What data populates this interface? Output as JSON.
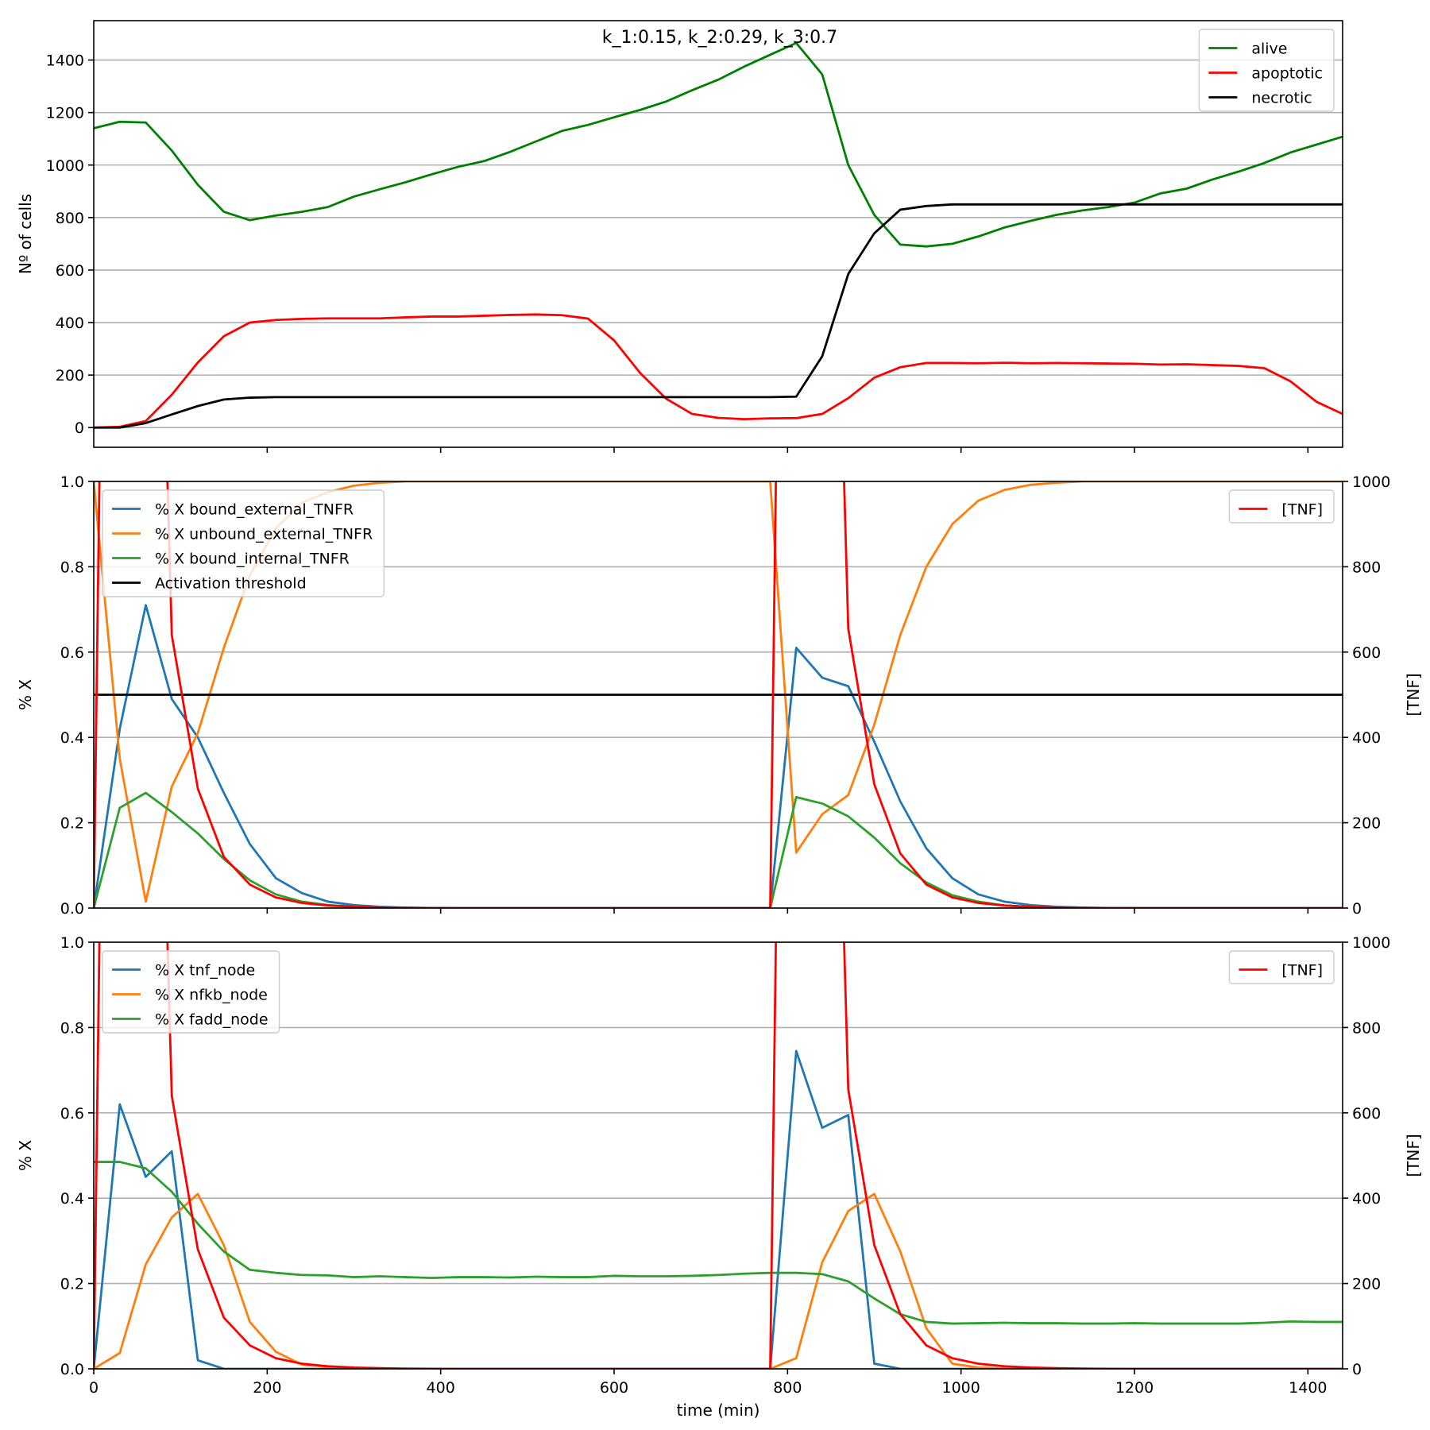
{
  "chart_data": [
    {
      "type": "line",
      "title": "k_1:0.15, k_2:0.29, k_3:0.7",
      "xlabel": "",
      "ylabel": "Nº of cells",
      "xlim": [
        0,
        1440
      ],
      "ylim": [
        -75,
        1550
      ],
      "xticks": [
        200,
        400,
        600,
        800,
        1000,
        1200,
        1400
      ],
      "yticks": [
        0,
        200,
        400,
        600,
        800,
        1000,
        1200,
        1400
      ],
      "show_x_ticklabels": false,
      "grid": "y",
      "legend": "top-right",
      "x": [
        0,
        30,
        60,
        90,
        120,
        150,
        180,
        210,
        240,
        270,
        300,
        330,
        360,
        390,
        420,
        450,
        480,
        510,
        540,
        570,
        600,
        630,
        660,
        690,
        720,
        750,
        780,
        810,
        840,
        870,
        900,
        930,
        960,
        990,
        1020,
        1050,
        1080,
        1110,
        1140,
        1170,
        1200,
        1230,
        1260,
        1290,
        1320,
        1350,
        1380,
        1410,
        1440
      ],
      "series": [
        {
          "name": "alive",
          "color": "#008000",
          "values": [
            1140,
            1165,
            1162,
            1055,
            925,
            822,
            790,
            808,
            822,
            840,
            880,
            908,
            935,
            965,
            993,
            1015,
            1050,
            1090,
            1130,
            1153,
            1182,
            1210,
            1242,
            1285,
            1325,
            1375,
            1420,
            1465,
            1345,
            1000,
            810,
            697,
            690,
            700,
            728,
            762,
            787,
            810,
            827,
            840,
            857,
            892,
            910,
            945,
            975,
            1008,
            1048,
            1078,
            1108
          ]
        },
        {
          "name": "apoptotic",
          "color": "#ff0000",
          "values": [
            0,
            3,
            25,
            125,
            248,
            348,
            400,
            410,
            414,
            416,
            416,
            416,
            420,
            423,
            423,
            426,
            429,
            431,
            428,
            415,
            332,
            208,
            110,
            52,
            37,
            32,
            35,
            36,
            52,
            112,
            190,
            230,
            246,
            246,
            245,
            247,
            245,
            246,
            245,
            244,
            243,
            240,
            241,
            238,
            235,
            226,
            176,
            98,
            52
          ]
        },
        {
          "name": "necrotic",
          "color": "#000000",
          "values": [
            0,
            0,
            17,
            50,
            82,
            107,
            114,
            116,
            116,
            116,
            116,
            116,
            116,
            116,
            116,
            116,
            116,
            116,
            116,
            116,
            116,
            116,
            116,
            116,
            116,
            116,
            116,
            118,
            272,
            585,
            740,
            830,
            844,
            850,
            850,
            850,
            850,
            850,
            850,
            850,
            850,
            850,
            850,
            850,
            850,
            850,
            850,
            850,
            850
          ]
        }
      ]
    },
    {
      "type": "line",
      "title": "",
      "xlabel": "",
      "ylabel": "% X",
      "y2label": "[TNF]",
      "xlim": [
        0,
        1440
      ],
      "ylim": [
        0,
        1.0
      ],
      "y2lim": [
        0,
        1000
      ],
      "xticks": [
        200,
        400,
        600,
        800,
        1000,
        1200,
        1400
      ],
      "yticks": [
        0.0,
        0.2,
        0.4,
        0.6,
        0.8,
        1.0
      ],
      "y2ticks": [
        0,
        200,
        400,
        600,
        800,
        1000
      ],
      "show_x_ticklabels": false,
      "grid": "y",
      "legend": "top-left",
      "legend2": "top-right",
      "x": [
        0,
        30,
        60,
        90,
        120,
        150,
        180,
        210,
        240,
        270,
        300,
        330,
        360,
        390,
        420,
        450,
        480,
        510,
        540,
        570,
        600,
        630,
        660,
        690,
        720,
        750,
        780,
        810,
        840,
        870,
        900,
        930,
        960,
        990,
        1020,
        1050,
        1080,
        1110,
        1140,
        1170,
        1200,
        1230,
        1260,
        1290,
        1320,
        1350,
        1380,
        1410,
        1440
      ],
      "series": [
        {
          "name": "% X bound_external_TNFR",
          "color": "#1f77b4",
          "values": [
            0.0,
            0.42,
            0.71,
            0.49,
            0.4,
            0.27,
            0.15,
            0.07,
            0.035,
            0.015,
            0.007,
            0.003,
            0.001,
            0,
            0,
            0,
            0,
            0,
            0,
            0,
            0,
            0,
            0,
            0,
            0,
            0,
            0,
            0.61,
            0.54,
            0.52,
            0.39,
            0.25,
            0.14,
            0.07,
            0.032,
            0.015,
            0.007,
            0.003,
            0.001,
            0,
            0,
            0,
            0,
            0,
            0,
            0,
            0,
            0,
            0
          ]
        },
        {
          "name": "% X unbound_external_TNFR",
          "color": "#ff7f0e",
          "values": [
            1.0,
            0.35,
            0.015,
            0.285,
            0.41,
            0.61,
            0.78,
            0.89,
            0.95,
            0.975,
            0.99,
            0.997,
            1.0,
            1.0,
            1.0,
            1.0,
            1.0,
            1.0,
            1.0,
            1.0,
            1.0,
            1.0,
            1.0,
            1.0,
            1.0,
            1.0,
            1.0,
            0.13,
            0.22,
            0.265,
            0.43,
            0.64,
            0.8,
            0.9,
            0.955,
            0.98,
            0.992,
            0.997,
            1.0,
            1.0,
            1.0,
            1.0,
            1.0,
            1.0,
            1.0,
            1.0,
            1.0,
            1.0,
            1.0
          ]
        },
        {
          "name": "% X bound_internal_TNFR",
          "color": "#2ca02c",
          "values": [
            0.0,
            0.235,
            0.27,
            0.225,
            0.175,
            0.115,
            0.065,
            0.032,
            0.015,
            0.007,
            0.003,
            0.001,
            0,
            0,
            0,
            0,
            0,
            0,
            0,
            0,
            0,
            0,
            0,
            0,
            0,
            0,
            0,
            0.26,
            0.245,
            0.215,
            0.165,
            0.105,
            0.06,
            0.03,
            0.015,
            0.006,
            0.002,
            0.001,
            0,
            0,
            0,
            0,
            0,
            0,
            0,
            0,
            0,
            0,
            0
          ]
        },
        {
          "name": "Activation threshold",
          "color": "#000000",
          "constant": 0.5
        }
      ],
      "series2": [
        {
          "name": "[TNF]",
          "color": "#ff0000",
          "values": [
            0,
            4600,
            2800,
            640,
            280,
            120,
            55,
            25,
            12,
            6,
            3,
            1.5,
            0.7,
            0.3,
            0,
            0,
            0,
            0,
            0,
            0,
            0,
            0,
            0,
            0,
            0,
            0,
            0,
            4600,
            2800,
            655,
            290,
            128,
            55,
            25,
            12,
            6,
            3,
            1.5,
            0.7,
            0.3,
            0,
            0,
            0,
            0,
            0,
            0,
            0,
            0,
            0
          ]
        }
      ]
    },
    {
      "type": "line",
      "title": "",
      "xlabel": "time (min)",
      "ylabel": "% X",
      "y2label": "[TNF]",
      "xlim": [
        0,
        1440
      ],
      "ylim": [
        0,
        1.0
      ],
      "y2lim": [
        0,
        1000
      ],
      "xticks": [
        0,
        200,
        400,
        600,
        800,
        1000,
        1200,
        1400
      ],
      "yticks": [
        0.0,
        0.2,
        0.4,
        0.6,
        0.8,
        1.0
      ],
      "y2ticks": [
        0,
        200,
        400,
        600,
        800,
        1000
      ],
      "show_x_ticklabels": true,
      "grid": "y",
      "legend": "top-left",
      "legend2": "top-right",
      "x": [
        0,
        30,
        60,
        90,
        120,
        150,
        180,
        210,
        240,
        270,
        300,
        330,
        360,
        390,
        420,
        450,
        480,
        510,
        540,
        570,
        600,
        630,
        660,
        690,
        720,
        750,
        780,
        810,
        840,
        870,
        900,
        930,
        960,
        990,
        1020,
        1050,
        1080,
        1110,
        1140,
        1170,
        1200,
        1230,
        1260,
        1290,
        1320,
        1350,
        1380,
        1410,
        1440
      ],
      "series": [
        {
          "name": "% X tnf_node",
          "color": "#1f77b4",
          "values": [
            0.0,
            0.62,
            0.45,
            0.51,
            0.02,
            0.0,
            0,
            0,
            0,
            0,
            0,
            0,
            0,
            0,
            0,
            0,
            0,
            0,
            0,
            0,
            0,
            0,
            0,
            0,
            0,
            0,
            0,
            0.745,
            0.565,
            0.595,
            0.012,
            0,
            0,
            0,
            0,
            0,
            0,
            0,
            0,
            0,
            0,
            0,
            0,
            0,
            0,
            0,
            0,
            0,
            0
          ]
        },
        {
          "name": "% X nfkb_node",
          "color": "#ff7f0e",
          "values": [
            0.0,
            0.037,
            0.245,
            0.355,
            0.41,
            0.29,
            0.11,
            0.04,
            0.01,
            0.005,
            0.002,
            0.001,
            0,
            0,
            0,
            0,
            0,
            0,
            0,
            0,
            0,
            0,
            0,
            0,
            0,
            0,
            0,
            0.025,
            0.25,
            0.37,
            0.41,
            0.275,
            0.095,
            0.012,
            0.003,
            0.001,
            0,
            0,
            0,
            0,
            0,
            0,
            0,
            0,
            0,
            0,
            0,
            0,
            0
          ]
        },
        {
          "name": "% X fadd_node",
          "color": "#2ca02c",
          "values": [
            0.485,
            0.485,
            0.47,
            0.415,
            0.34,
            0.275,
            0.232,
            0.225,
            0.22,
            0.219,
            0.215,
            0.217,
            0.215,
            0.213,
            0.215,
            0.215,
            0.214,
            0.216,
            0.215,
            0.215,
            0.218,
            0.217,
            0.217,
            0.218,
            0.22,
            0.223,
            0.225,
            0.225,
            0.222,
            0.205,
            0.165,
            0.128,
            0.11,
            0.106,
            0.107,
            0.108,
            0.107,
            0.107,
            0.106,
            0.106,
            0.107,
            0.106,
            0.106,
            0.106,
            0.106,
            0.108,
            0.111,
            0.11,
            0.11
          ]
        }
      ],
      "series2": [
        {
          "name": "[TNF]",
          "color": "#ff0000",
          "values": [
            0,
            4600,
            2800,
            640,
            280,
            120,
            55,
            25,
            12,
            6,
            3,
            1.5,
            0.7,
            0.3,
            0,
            0,
            0,
            0,
            0,
            0,
            0,
            0,
            0,
            0,
            0,
            0,
            0,
            4600,
            2800,
            655,
            290,
            128,
            55,
            25,
            12,
            6,
            3,
            1.5,
            0.7,
            0.3,
            0,
            0,
            0,
            0,
            0,
            0,
            0,
            0,
            0
          ]
        }
      ]
    }
  ]
}
